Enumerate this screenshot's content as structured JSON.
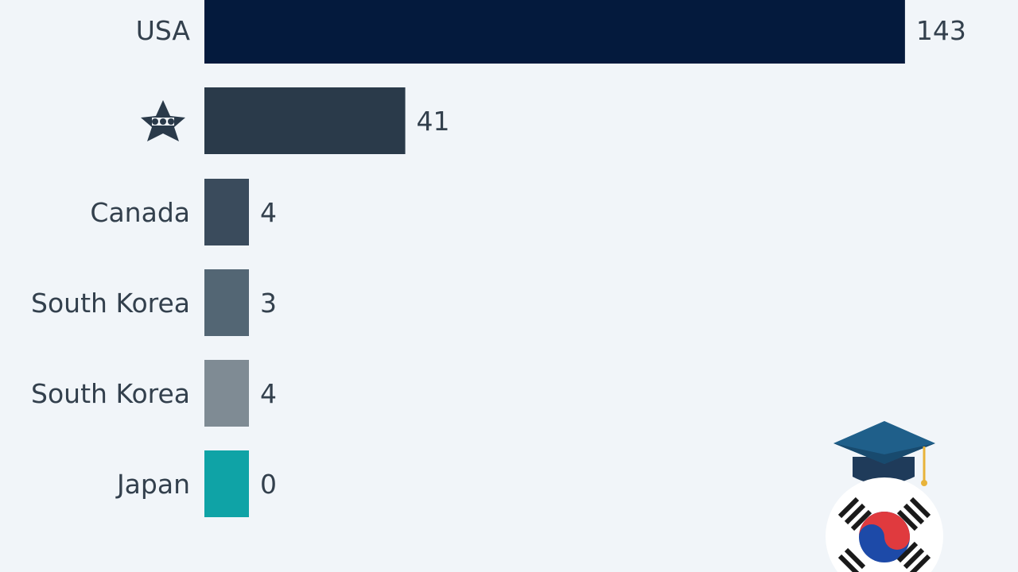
{
  "chart_data": {
    "type": "bar",
    "orientation": "horizontal",
    "categories": [
      "USA",
      "",
      "Canada",
      "South Korea",
      "South Korea",
      "Japan"
    ],
    "values": [
      143,
      41,
      4,
      3,
      4,
      0
    ],
    "value_labels": [
      "143",
      "41",
      "4",
      "3",
      "4",
      "0"
    ],
    "title": "",
    "xlabel": "",
    "ylabel": "",
    "colors": [
      "#041a3d",
      "#2a3a4a",
      "#3a4b5c",
      "#536674",
      "#7f8b94",
      "#0fa3a6"
    ],
    "grid": false,
    "legend": "none"
  },
  "icons": {
    "row2_label": "star-emblem-icon",
    "decoration_cap": "graduation-cap-icon",
    "decoration_flag": "south-korea-flag-icon"
  },
  "colors": {
    "background": "#f1f5f9",
    "text": "#33404d"
  }
}
